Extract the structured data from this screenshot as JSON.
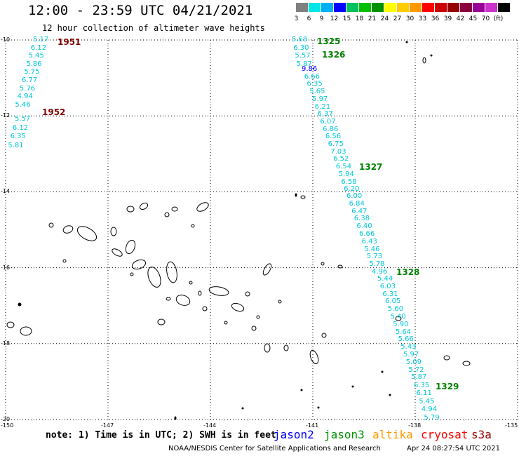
{
  "header": {
    "title": "12:00 - 23:59 UTC 04/21/2021",
    "subtitle": "12 hour collection of altimeter wave heights"
  },
  "colorbar": {
    "colors": [
      "#808080",
      "#00e5e5",
      "#00b0f0",
      "#0000ff",
      "#00c060",
      "#00c000",
      "#009000",
      "#ffff00",
      "#ffcc00",
      "#ff9900",
      "#ff0000",
      "#cc0000",
      "#990000",
      "#8b0040",
      "#990099",
      "#cc33cc",
      "#000000"
    ],
    "labels": [
      "3",
      "6",
      "9",
      "12",
      "15",
      "18",
      "21",
      "24",
      "27",
      "30",
      "33",
      "36",
      "39",
      "42",
      "45",
      "70",
      "(ft)"
    ]
  },
  "axes": {
    "lat_labels": [
      "-10",
      "-12",
      "-14",
      "-16",
      "-18",
      "-20"
    ],
    "lon_labels": [
      "-150",
      "-147",
      "-144",
      "-141",
      "-138",
      "-135"
    ],
    "lat_values": [
      -10,
      -12,
      -14,
      -16,
      -18,
      -20
    ],
    "lon_values": [
      -150,
      -147,
      -144,
      -141,
      -138,
      -135
    ],
    "lon_range": [
      -150,
      -135
    ],
    "lat_range": [
      -20,
      -10
    ]
  },
  "tracks": [
    {
      "pass": "1951",
      "pass_color": "#800000",
      "value_color": "#00c8d8",
      "values": [
        "5.17",
        "6.12",
        "5.45",
        "5.86",
        "5.75",
        "6.77",
        "5.76",
        "4.94",
        "5.46"
      ]
    },
    {
      "pass": "1952",
      "pass_color": "#800000",
      "value_color": "#00c8d8",
      "values": [
        "5.57",
        "6.12",
        "6.35",
        "5.81"
      ]
    },
    {
      "pass": "1325",
      "pass_color": "#008000",
      "value_color": "#00c8d8",
      "values": [
        "5.68",
        "6.30",
        "5.57",
        "5.87"
      ]
    },
    {
      "pass": "1326",
      "pass_color": "#008000",
      "value_color": "#00c8d8",
      "values": [
        "9.86",
        "6.66",
        "6.35",
        "5.65",
        "5.97",
        "6.21",
        "6.37",
        "6.07",
        "6.86",
        "6.56",
        "6.75",
        "7.03",
        "6.52",
        "6.54",
        "5.94",
        "6.58",
        "6.20"
      ]
    },
    {
      "pass": "1327",
      "pass_color": "#008000",
      "value_color": "#00c8d8",
      "values": [
        "6.00",
        "6.84",
        "6.47",
        "6.38",
        "6.40",
        "6.66",
        "6.43",
        "5.46",
        "5.73",
        "5.78",
        "4.96"
      ]
    },
    {
      "pass": "1328",
      "pass_color": "#008000",
      "value_color": "#00c8d8",
      "values": [
        "5.44",
        "6.03",
        "6.31",
        "6.05",
        "5.60",
        "5.40",
        "5.90",
        "5.64",
        "5.66",
        "5.43",
        "5.97",
        "5.09",
        "5.72",
        "5.87"
      ]
    },
    {
      "pass": "1329",
      "pass_color": "#008000",
      "value_color": "#00c8d8",
      "values": [
        "6.35",
        "6.11",
        "5.45",
        "4.94",
        "5.79"
      ]
    }
  ],
  "footer": {
    "note": "note: 1) Time is in UTC; 2) SWH is in feet",
    "satellites": [
      {
        "name": "jason2",
        "color": "#0000ff"
      },
      {
        "name": "jason3",
        "color": "#009000"
      },
      {
        "name": "altika",
        "color": "#ff9900"
      },
      {
        "name": "cryosat",
        "color": "#ff0000"
      },
      {
        "name": "s3a",
        "color": "#990000"
      }
    ],
    "credit": "NOAA/NESDIS Center for Satellite Applications and Research",
    "timestamp": "Apr 24 08:27:54 UTC 2021"
  }
}
